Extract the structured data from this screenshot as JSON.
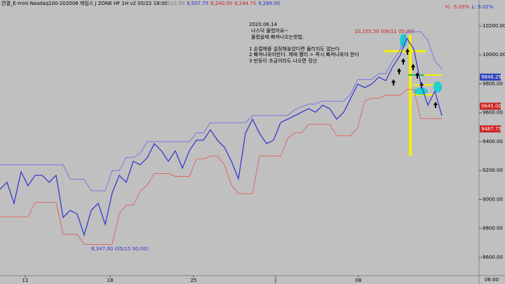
{
  "chart_data": {
    "type": "line",
    "title": "연결_E-mini Nasdaq100-202006 제임스 J ZONE HF 1H v2  05/22 18:00",
    "ohlc_labels": [
      {
        "text": "9,512.50",
        "color": "#777777"
      },
      {
        "text": "9,507.75",
        "color": "#2233cc"
      },
      {
        "text": "9,240.00",
        "color": "#cc2222"
      },
      {
        "text": "9,244.75",
        "color": "#cc2222"
      },
      {
        "text": "9,289.00",
        "color": "#2233cc"
      }
    ],
    "range_labels": [
      {
        "text": "H: -5.03%",
        "color": "#cc2222"
      },
      {
        "text": "L: 9.02%",
        "color": "#2233cc"
      }
    ],
    "annotation_lines": [
      "2020.06.14",
      "나스닥 물렸어요~",
      "물렸을때 빠져나오는방법.",
      "1 손절매를 설정해놓았다면 물리지도 않는다",
      "2 빠져나와야한다. 제때 빨리 > 즉시 빠져나와야 한다",
      "3 반등이 조금이라도 나오면 정산."
    ],
    "high_marker": "10,155.50 (06/11 05:00)",
    "low_marker": "8,347.00 (05/15 00:00)",
    "time_label": "06:00",
    "x": [
      0,
      1,
      2,
      3,
      4,
      5,
      6,
      7,
      8,
      9,
      10,
      11,
      12,
      13,
      14,
      15,
      16,
      17,
      18,
      19,
      20,
      21,
      22,
      23,
      24,
      25,
      26,
      27,
      28,
      29,
      30,
      31,
      32,
      33,
      34,
      35,
      36,
      37,
      38,
      39,
      40,
      41,
      42,
      43,
      44,
      45,
      46,
      47,
      48,
      49,
      50,
      51,
      52,
      53,
      54,
      55,
      56,
      57,
      58,
      59,
      60,
      61,
      62,
      63
    ],
    "series": [
      {
        "name": "Close",
        "color": "#3a3ad0",
        "values": [
          9070,
          9119,
          8973,
          9192,
          9095,
          9167,
          9167,
          9119,
          9167,
          8876,
          8925,
          8900,
          8755,
          8925,
          8973,
          8828,
          9046,
          9167,
          9119,
          9264,
          9240,
          9289,
          9386,
          9337,
          9264,
          9337,
          9216,
          9337,
          9410,
          9410,
          9482,
          9410,
          9361,
          9264,
          9143,
          9458,
          9555,
          9458,
          9386,
          9410,
          9531,
          9555,
          9579,
          9603,
          9628,
          9603,
          9652,
          9628,
          9555,
          9603,
          9700,
          9798,
          9773,
          9798,
          9846,
          9822,
          9919,
          9992,
          10113,
          10040,
          9798,
          9652,
          9749,
          9579
        ]
      },
      {
        "name": "Upper",
        "color": "#7070e8",
        "values": [
          9240,
          9240,
          9240,
          9240,
          9240,
          9240,
          9240,
          9240,
          9240,
          9240,
          9140,
          9140,
          9140,
          9060,
          9060,
          9060,
          9200,
          9200,
          9290,
          9290,
          9320,
          9400,
          9400,
          9400,
          9400,
          9400,
          9400,
          9400,
          9460,
          9460,
          9530,
          9530,
          9530,
          9530,
          9530,
          9530,
          9580,
          9580,
          9580,
          9580,
          9580,
          9580,
          9620,
          9640,
          9660,
          9660,
          9680,
          9680,
          9680,
          9680,
          9730,
          9830,
          9830,
          9830,
          9870,
          9870,
          9960,
          10030,
          10160,
          10160,
          10160,
          10100,
          9960,
          9900
        ]
      },
      {
        "name": "Lower",
        "color": "#e06060",
        "values": [
          8880,
          8880,
          8880,
          8880,
          8880,
          8980,
          8980,
          8980,
          8980,
          8760,
          8760,
          8760,
          8690,
          8690,
          8690,
          8690,
          8690,
          8900,
          8960,
          8960,
          9060,
          9100,
          9180,
          9180,
          9180,
          9160,
          9160,
          9160,
          9280,
          9280,
          9300,
          9300,
          9240,
          9100,
          9040,
          9040,
          9040,
          9300,
          9300,
          9300,
          9300,
          9420,
          9460,
          9460,
          9520,
          9520,
          9520,
          9520,
          9440,
          9440,
          9440,
          9500,
          9680,
          9700,
          9700,
          9720,
          9720,
          9720,
          9760,
          9760,
          9560,
          9560,
          9560,
          9560
        ]
      }
    ],
    "xlim": [
      0,
      68.3
    ],
    "xticks": [
      {
        "value": 3.6,
        "label": "11"
      },
      {
        "value": 15.7,
        "label": "18"
      },
      {
        "value": 27.6,
        "label": "25"
      },
      {
        "value": 39.3,
        "label": "J"
      },
      {
        "value": 51.1,
        "label": "08"
      }
    ],
    "ylim": [
      8474,
      10379
    ],
    "yticks": [
      {
        "value": 8600,
        "label": "8600.00"
      },
      {
        "value": 8800,
        "label": "8800.00"
      },
      {
        "value": 9000,
        "label": "9000.00"
      },
      {
        "value": 9200,
        "label": "9200.00"
      },
      {
        "value": 9400,
        "label": "9400.00"
      },
      {
        "value": 9600,
        "label": "9600.00"
      },
      {
        "value": 9800,
        "label": "9800.00"
      },
      {
        "value": 10000,
        "label": "10000.00"
      },
      {
        "value": 10200,
        "label": "10200.00"
      }
    ],
    "price_badges": [
      {
        "value": 9846.25,
        "label": "9846.25",
        "color": "#3344bb"
      },
      {
        "value": 9645.0,
        "label": "9645.00",
        "color": "#cc2222"
      },
      {
        "value": 9487.75,
        "label": "9487.75",
        "color": "#cc2222"
      }
    ]
  }
}
